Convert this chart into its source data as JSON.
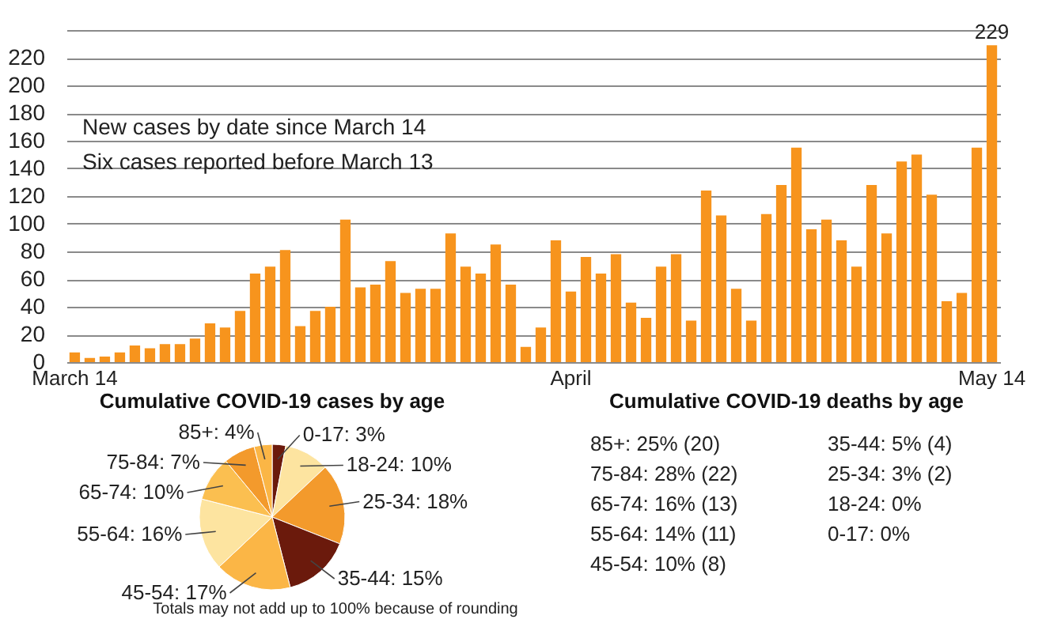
{
  "chart_data": [
    {
      "type": "bar",
      "categories": [
        "March 14",
        null,
        null,
        null,
        null,
        null,
        null,
        null,
        null,
        null,
        null,
        null,
        null,
        null,
        null,
        null,
        null,
        null,
        null,
        null,
        null,
        null,
        null,
        null,
        null,
        null,
        null,
        null,
        null,
        null,
        null,
        null,
        null,
        "April",
        null,
        null,
        null,
        null,
        null,
        null,
        null,
        null,
        null,
        null,
        null,
        null,
        null,
        null,
        null,
        null,
        null,
        null,
        null,
        null,
        null,
        null,
        null,
        null,
        null,
        null,
        null,
        "May 14"
      ],
      "values": [
        7,
        3,
        4,
        7,
        12,
        10,
        13,
        13,
        17,
        28,
        25,
        37,
        64,
        69,
        81,
        26,
        37,
        40,
        103,
        54,
        56,
        73,
        50,
        53,
        53,
        93,
        69,
        64,
        85,
        56,
        11,
        25,
        88,
        51,
        76,
        64,
        78,
        43,
        32,
        69,
        78,
        30,
        124,
        106,
        53,
        30,
        107,
        128,
        155,
        96,
        103,
        88,
        69,
        128,
        93,
        145,
        150,
        121,
        44,
        50,
        155,
        229
      ],
      "value_labels": [
        null,
        null,
        null,
        null,
        null,
        null,
        null,
        null,
        null,
        null,
        null,
        null,
        null,
        null,
        null,
        null,
        null,
        null,
        null,
        null,
        null,
        null,
        null,
        null,
        null,
        null,
        null,
        null,
        null,
        null,
        null,
        null,
        null,
        null,
        null,
        null,
        null,
        null,
        null,
        null,
        null,
        null,
        null,
        null,
        null,
        null,
        null,
        null,
        null,
        null,
        null,
        null,
        null,
        null,
        null,
        null,
        null,
        null,
        null,
        null,
        null,
        "229"
      ],
      "color": "#f7941d",
      "ylim": [
        0,
        240
      ],
      "yticks": [
        0,
        20,
        40,
        60,
        80,
        100,
        120,
        140,
        160,
        180,
        200,
        220,
        {
          "value": 240,
          "label": null
        }
      ],
      "grid": "y",
      "annotations": [
        "New cases by date since March 14",
        "Six cases reported before March 13"
      ]
    },
    {
      "type": "pie",
      "title": "Cumulative  COVID-19 cases by age",
      "categories": [
        "0-17",
        "18-24",
        "25-34",
        "35-44",
        "45-54",
        "55-64",
        "65-74",
        "75-84",
        "85+"
      ],
      "values": [
        3,
        10,
        18,
        15,
        17,
        16,
        10,
        7,
        4
      ],
      "colors": [
        "#6b1a0c",
        "#fde4a0",
        "#f39a2c",
        "#6b1a0c",
        "#fbb646",
        "#fde4a0",
        "#fbbf50",
        "#f39a2c",
        "#fbb646"
      ],
      "value_labels": [
        "3%",
        "10%",
        "18%",
        "15%",
        "17%",
        "16%",
        "10%",
        "7%",
        "4%"
      ],
      "annotations": [
        "Totals may not add up to 100% because of rounding"
      ]
    },
    {
      "type": "other",
      "title": "Cumulative COVID-19  deaths by age",
      "annotations": [
        "85+: 25% (20)",
        "75-84: 28% (22)",
        "65-74: 16% (13)",
        "55-64: 14% (11)",
        "45-54: 10% (8)",
        "35-44: 5% (4)",
        "25-34: 3% (2)",
        "18-24: 0%",
        "0-17: 0%"
      ]
    }
  ]
}
